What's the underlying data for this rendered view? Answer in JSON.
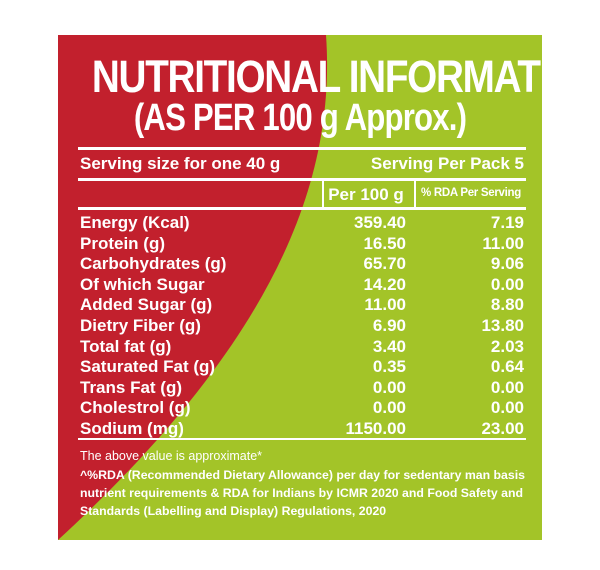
{
  "colors": {
    "red": "#c2202d",
    "green": "#a3c428",
    "text": "#ffffff"
  },
  "title": {
    "line1": "NUTRITIONAL INFORMATION",
    "line2": "(AS PER 100 g Approx.)"
  },
  "serving": {
    "size": "Serving size for one 40 g",
    "per_pack": "Serving Per Pack 5"
  },
  "table": {
    "col_per100": "Per 100 g",
    "col_rda": "% RDA Per Serving",
    "rows": [
      {
        "name": "Energy (Kcal)",
        "per100": "359.40",
        "rda": "7.19"
      },
      {
        "name": "Protein (g)",
        "per100": "16.50",
        "rda": "11.00"
      },
      {
        "name": "Carbohydrates (g)",
        "per100": "65.70",
        "rda": "9.06"
      },
      {
        "name": "Of which Sugar",
        "per100": "14.20",
        "rda": "0.00"
      },
      {
        "name": "Added Sugar (g)",
        "per100": "11.00",
        "rda": "8.80"
      },
      {
        "name": "Dietry Fiber (g)",
        "per100": "6.90",
        "rda": "13.80"
      },
      {
        "name": "Total fat (g)",
        "per100": "3.40",
        "rda": "2.03"
      },
      {
        "name": "Saturated Fat (g)",
        "per100": "0.35",
        "rda": "0.64"
      },
      {
        "name": "Trans Fat (g)",
        "per100": "0.00",
        "rda": "0.00"
      },
      {
        "name": "Cholestrol (g)",
        "per100": "0.00",
        "rda": "0.00"
      },
      {
        "name": "Sodium (mg)",
        "per100": "1150.00",
        "rda": "23.00"
      }
    ]
  },
  "notes": {
    "approx": "The above value is approximate*",
    "rda": "^%RDA (Recommended Dietary Allowance) per day for sedentary man basis nutrient requirements & RDA for Indians by ICMR 2020 and Food Safety and Standards (Labelling and Display) Regulations, 2020"
  }
}
